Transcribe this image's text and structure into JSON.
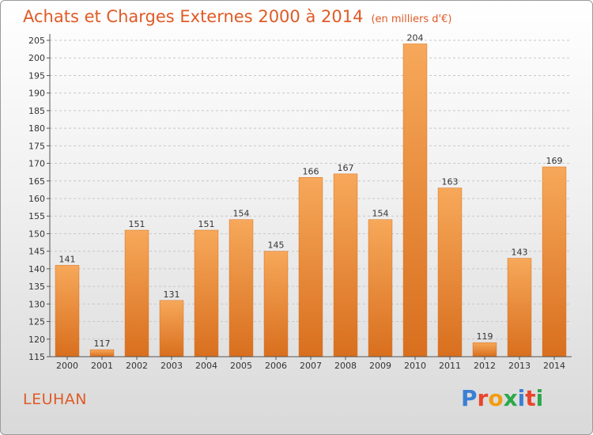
{
  "header": {
    "title": "Achats et Charges Externes 2000 à 2014",
    "subtitle": "(en milliers d'€)"
  },
  "footer": {
    "commune": "LEUHAN",
    "logo_text": "Proxiti",
    "logo_colors": [
      "#3a7fd5",
      "#e8452c",
      "#f39c12",
      "#2ba84a",
      "#3a7fd5",
      "#e8452c",
      "#2ba84a"
    ]
  },
  "colors": {
    "bar": "#f0913a",
    "bar_light": "#f7a85a",
    "bar_dark": "#d86f1e",
    "text_accent": "#e05a25"
  },
  "chart_data": {
    "type": "bar",
    "title": "Achats et Charges Externes 2000 à 2014",
    "subtitle": "(en milliers d'€)",
    "categories": [
      "2000",
      "2001",
      "2002",
      "2003",
      "2004",
      "2005",
      "2006",
      "2007",
      "2008",
      "2009",
      "2010",
      "2011",
      "2012",
      "2013",
      "2014"
    ],
    "values": [
      141,
      117,
      151,
      131,
      151,
      154,
      145,
      166,
      167,
      154,
      204,
      163,
      119,
      143,
      169
    ],
    "ylim": [
      115,
      205
    ],
    "yticks": [
      115,
      120,
      125,
      130,
      135,
      140,
      145,
      150,
      155,
      160,
      165,
      170,
      175,
      180,
      185,
      190,
      195,
      200,
      205
    ],
    "grid": true,
    "data_labels": true
  }
}
